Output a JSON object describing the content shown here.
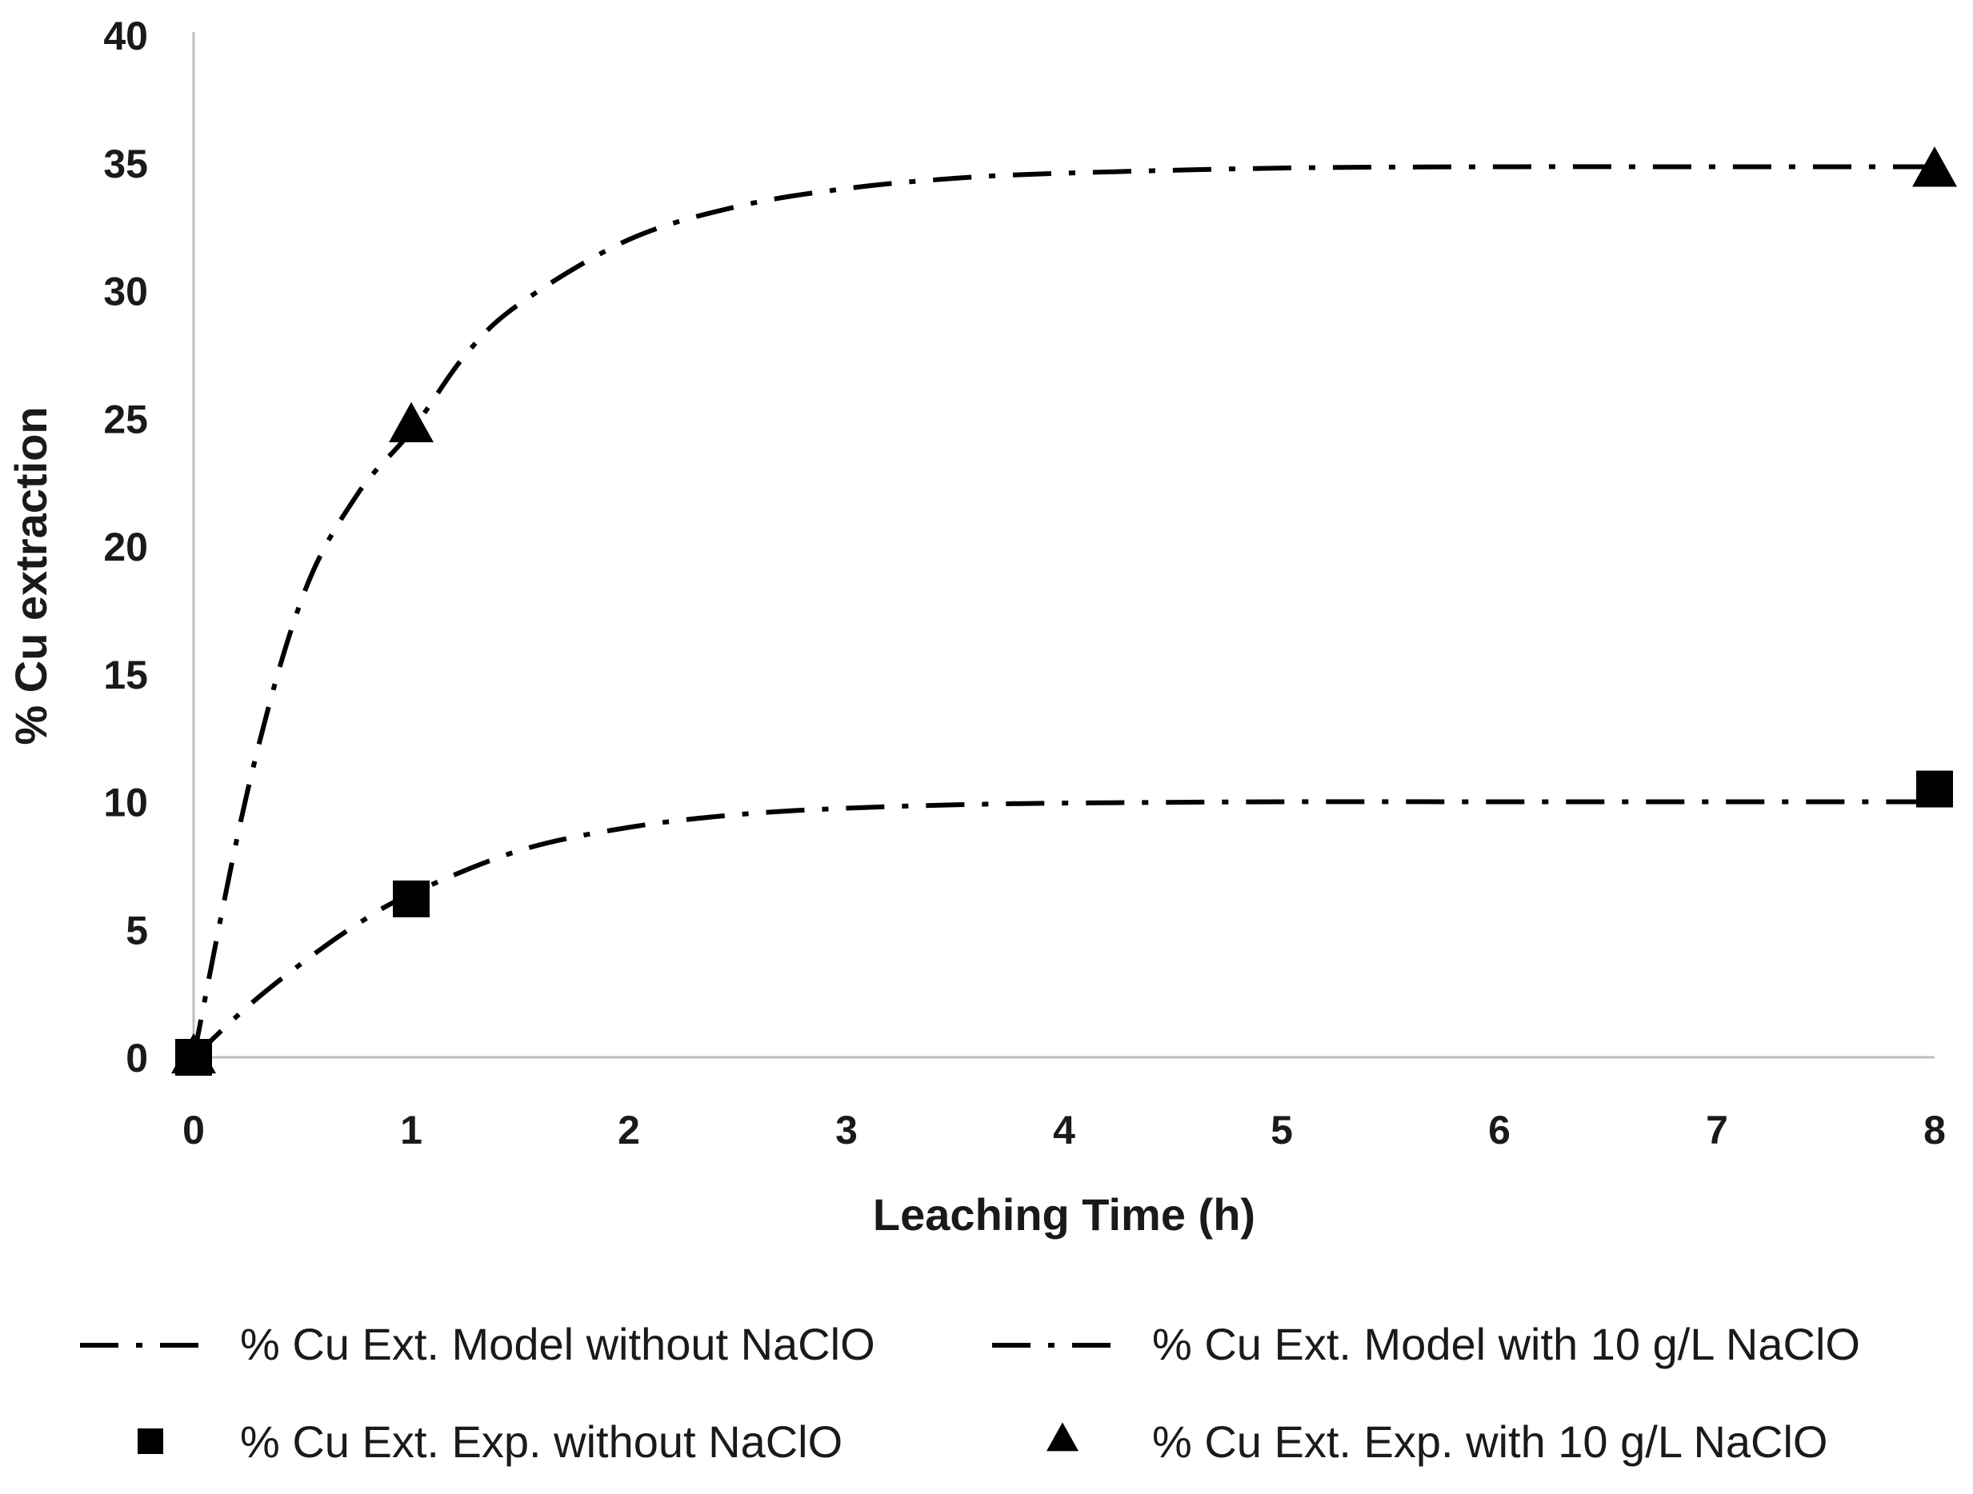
{
  "chart_data": {
    "type": "line",
    "xlabel": "Leaching Time (h)",
    "ylabel": "% Cu extraction",
    "xlim": [
      0,
      8
    ],
    "ylim": [
      0,
      40
    ],
    "x_ticks": [
      0,
      1,
      2,
      3,
      4,
      5,
      6,
      7,
      8
    ],
    "y_ticks": [
      0,
      5,
      10,
      15,
      20,
      25,
      30,
      35,
      40
    ],
    "grid": false,
    "legend_position": "bottom",
    "series": [
      {
        "name": "% Cu Ext. Model without NaClO",
        "kind": "model-line",
        "line_style": "dash-dot",
        "x": [
          0,
          0.25,
          0.5,
          0.75,
          1,
          1.5,
          2,
          2.5,
          3,
          3.5,
          4,
          5,
          6,
          7,
          8
        ],
        "y": [
          0,
          2.0,
          3.7,
          5.2,
          6.4,
          8.1,
          9.0,
          9.5,
          9.75,
          9.88,
          9.95,
          10.0,
          10.0,
          10.0,
          10.0
        ]
      },
      {
        "name": "% Cu Ext. Model with 10 g/L NaClO",
        "kind": "model-line",
        "line_style": "dash-dot",
        "x": [
          0,
          0.25,
          0.5,
          0.75,
          1,
          1.25,
          1.5,
          2,
          2.5,
          3,
          3.5,
          4,
          5,
          6,
          7,
          8
        ],
        "y": [
          0,
          10.5,
          18.0,
          22.0,
          24.5,
          27.5,
          29.5,
          32.0,
          33.3,
          34.0,
          34.4,
          34.6,
          34.8,
          34.85,
          34.85,
          34.85
        ]
      },
      {
        "name": "% Cu Ext. Exp. without NaClO",
        "kind": "experimental",
        "marker": "square",
        "x": [
          0,
          1,
          8
        ],
        "y": [
          0,
          6.2,
          10.5
        ]
      },
      {
        "name": "% Cu Ext. Exp. with 10 g/L NaClO",
        "kind": "experimental",
        "marker": "triangle",
        "x": [
          0,
          1,
          8
        ],
        "y": [
          0,
          24.7,
          34.7
        ]
      }
    ]
  },
  "legend": {
    "items": [
      {
        "label": "% Cu Ext. Model without NaClO",
        "symbol": "dash-dot"
      },
      {
        "label": "% Cu Ext. Model with 10 g/L NaClO",
        "symbol": "dash-dot"
      },
      {
        "label": "% Cu Ext. Exp. without NaClO",
        "symbol": "square"
      },
      {
        "label": "% Cu Ext. Exp. with 10 g/L NaClO",
        "symbol": "triangle"
      }
    ]
  },
  "colors": {
    "ink": "#000000",
    "axis": "#bfbfbf",
    "text": "#1a1a1a"
  }
}
